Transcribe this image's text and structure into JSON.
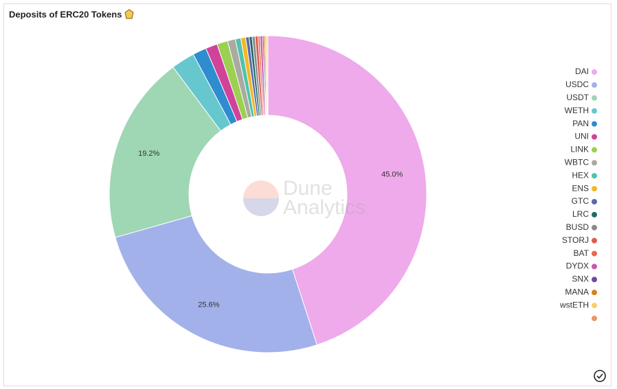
{
  "chart_data": {
    "type": "pie",
    "title": "Deposits of ERC20 Tokens",
    "watermark": [
      "Dune",
      "Analytics"
    ],
    "categories": [
      "DAI",
      "USDC",
      "USDT",
      "WETH",
      "PAN",
      "UNI",
      "LINK",
      "WBTC",
      "HEX",
      "ENS",
      "GTC",
      "LRC",
      "BUSD",
      "STORJ",
      "BAT",
      "DYDX",
      "SNX",
      "MANA",
      "wstETH",
      null
    ],
    "values": [
      45.0,
      25.6,
      19.2,
      2.4,
      1.4,
      1.2,
      1.1,
      0.8,
      0.55,
      0.5,
      0.35,
      0.3,
      0.3,
      0.3,
      0.2,
      0.25,
      0.15,
      0.15,
      0.15,
      0.1
    ],
    "value_labels": [
      "45.0%",
      "25.6%",
      "19.2%",
      null,
      null,
      null,
      null,
      null,
      null,
      null,
      null,
      null,
      null,
      null,
      null,
      null,
      null,
      null,
      null,
      null
    ],
    "colors": [
      "#eeaaea",
      "#a3b1ea",
      "#9fd6b4",
      "#66c7cf",
      "#2f8ccf",
      "#d0439a",
      "#9bd050",
      "#a9aaa0",
      "#52c1ad",
      "#f1b827",
      "#5a69a8",
      "#1f6b6b",
      "#8a8a8a",
      "#e05a53",
      "#e8684a",
      "#c85ba8",
      "#6a4c9c",
      "#d9801f",
      "#f7cd6d",
      "#f0926a"
    ],
    "donut": true,
    "legend": "right"
  }
}
